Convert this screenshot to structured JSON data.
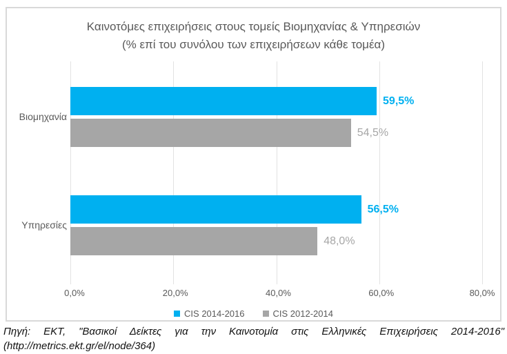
{
  "title": {
    "line1": "Καινοτόμες επιχειρήσεις στους τομείς Βιομηχανίας & Υπηρεσιών",
    "line2": "(% επί του συνόλου των επιχειρήσεων κάθε τομέα)"
  },
  "chart_data": {
    "type": "bar",
    "orientation": "horizontal",
    "title": "Καινοτόμες επιχειρήσεις στους τομείς Βιομηχανίας & Υπηρεσιών (% επί του συνόλου των επιχειρήσεων κάθε τομέα)",
    "categories": [
      "Βιομηχανία",
      "Υπηρεσίες"
    ],
    "series": [
      {
        "name": "CIS 2014-2016",
        "color": "#00B0F0",
        "values": [
          59.5,
          56.5
        ],
        "labels": [
          "59,5%",
          "56,5%"
        ]
      },
      {
        "name": "CIS 2012-2014",
        "color": "#A6A6A6",
        "values": [
          54.5,
          48.0
        ],
        "labels": [
          "54,5%",
          "48,0%"
        ]
      }
    ],
    "xlim": [
      0,
      80
    ],
    "x_ticks": [
      "0,0%",
      "20,0%",
      "40,0%",
      "60,0%",
      "80,0%"
    ],
    "grid": true,
    "legend_position": "bottom"
  },
  "colors": {
    "series_1": "#00B0F0",
    "series_2": "#A6A6A6",
    "title_text": "#595959",
    "axis_text": "#595959",
    "gridline": "#E2E2E2",
    "frame_border": "#D9D9D9"
  },
  "source": {
    "line1": "Πηγή: ΕΚΤ, \"Βασικοί Δείκτες για την Καινοτομία στις Ελληνικές Επιχειρήσεις 2014-2016\"",
    "line2": "(http://metrics.ekt.gr/el/node/364)"
  }
}
